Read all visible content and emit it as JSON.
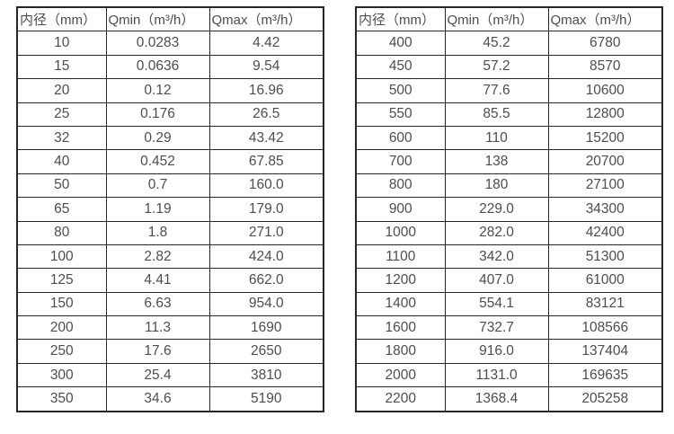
{
  "colors": {
    "background": "#ffffff",
    "border": "#262626",
    "text": "#4d4d4d"
  },
  "tables": [
    {
      "name": "small-diameter-flow-table",
      "headers": [
        "内径（mm）",
        "Qmin（m³/h）",
        "Qmax（m³/h）"
      ],
      "rows": [
        [
          "10",
          "0.0283",
          "4.42"
        ],
        [
          "15",
          "0.0636",
          "9.54"
        ],
        [
          "20",
          "0.12",
          "16.96"
        ],
        [
          "25",
          "0.176",
          "26.5"
        ],
        [
          "32",
          "0.29",
          "43.42"
        ],
        [
          "40",
          "0.452",
          "67.85"
        ],
        [
          "50",
          "0.7",
          "160.0"
        ],
        [
          "65",
          "1.19",
          "179.0"
        ],
        [
          "80",
          "1.8",
          "271.0"
        ],
        [
          "100",
          "2.82",
          "424.0"
        ],
        [
          "125",
          "4.41",
          "662.0"
        ],
        [
          "150",
          "6.63",
          "954.0"
        ],
        [
          "200",
          "11.3",
          "1690"
        ],
        [
          "250",
          "17.6",
          "2650"
        ],
        [
          "300",
          "25.4",
          "3810"
        ],
        [
          "350",
          "34.6",
          "5190"
        ]
      ]
    },
    {
      "name": "large-diameter-flow-table",
      "headers": [
        "内径（mm）",
        "Qmin（m³/h）",
        "Qmax（m³/h）"
      ],
      "rows": [
        [
          "400",
          "45.2",
          "6780"
        ],
        [
          "450",
          "57.2",
          "8570"
        ],
        [
          "500",
          "77.6",
          "10600"
        ],
        [
          "550",
          "85.5",
          "12800"
        ],
        [
          "600",
          "110",
          "15200"
        ],
        [
          "700",
          "138",
          "20700"
        ],
        [
          "800",
          "180",
          "27100"
        ],
        [
          "900",
          "229.0",
          "34300"
        ],
        [
          "1000",
          "282.0",
          "42400"
        ],
        [
          "1100",
          "342.0",
          "51300"
        ],
        [
          "1200",
          "407.0",
          "61000"
        ],
        [
          "1400",
          "554.1",
          "83121"
        ],
        [
          "1600",
          "732.7",
          "108566"
        ],
        [
          "1800",
          "916.0",
          "137404"
        ],
        [
          "2000",
          "1131.0",
          "169635"
        ],
        [
          "2200",
          "1368.4",
          "205258"
        ]
      ]
    }
  ]
}
